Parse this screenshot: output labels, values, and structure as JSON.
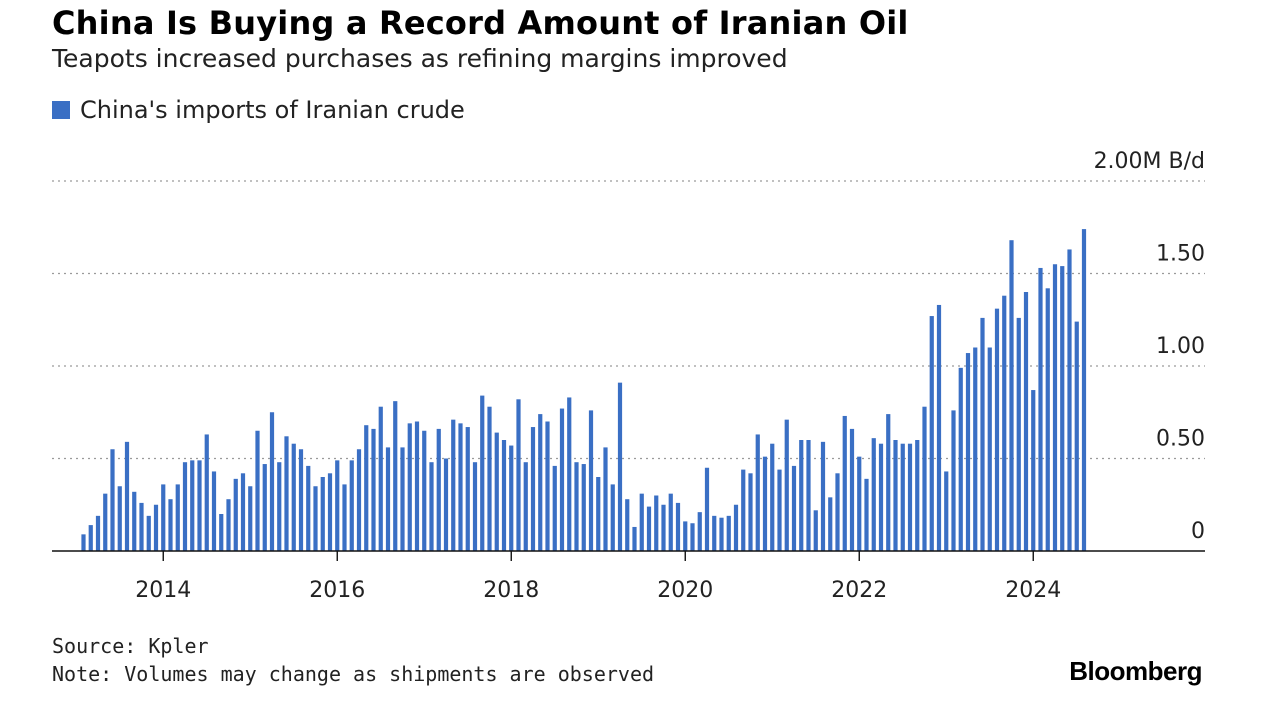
{
  "chart_data": {
    "type": "bar",
    "title": "China Is Buying a Record Amount of Iranian Oil",
    "subtitle": "Teapots increased purchases as refining margins improved",
    "unit_label": "2.00M B/d",
    "xlabel": "",
    "ylabel": "China's imports of Iranian crude (million barrels per day)",
    "ylim": [
      0,
      2.0
    ],
    "y_ticks": [
      {
        "value": 0,
        "label": "0"
      },
      {
        "value": 0.5,
        "label": "0.50"
      },
      {
        "value": 1.0,
        "label": "1.00"
      },
      {
        "value": 1.5,
        "label": "1.50"
      },
      {
        "value": 2.0,
        "label": "2.00M B/d"
      }
    ],
    "x_ticks": [
      "2014",
      "2016",
      "2018",
      "2020",
      "2022",
      "2024"
    ],
    "start": "2013-02",
    "grid": true,
    "legend_position": "top-left",
    "series": [
      {
        "name": "China's imports of Iranian crude",
        "color": "#3a6fc4",
        "values": [
          0.09,
          0.14,
          0.19,
          0.31,
          0.55,
          0.35,
          0.59,
          0.32,
          0.26,
          0.19,
          0.25,
          0.36,
          0.28,
          0.36,
          0.48,
          0.49,
          0.49,
          0.63,
          0.43,
          0.2,
          0.28,
          0.39,
          0.42,
          0.35,
          0.65,
          0.47,
          0.75,
          0.48,
          0.62,
          0.58,
          0.55,
          0.46,
          0.35,
          0.4,
          0.42,
          0.49,
          0.36,
          0.49,
          0.55,
          0.68,
          0.66,
          0.78,
          0.56,
          0.81,
          0.56,
          0.69,
          0.7,
          0.65,
          0.48,
          0.66,
          0.5,
          0.71,
          0.69,
          0.67,
          0.48,
          0.84,
          0.78,
          0.64,
          0.6,
          0.57,
          0.82,
          0.48,
          0.67,
          0.74,
          0.7,
          0.46,
          0.77,
          0.83,
          0.48,
          0.47,
          0.76,
          0.4,
          0.56,
          0.36,
          0.91,
          0.28,
          0.13,
          0.31,
          0.24,
          0.3,
          0.25,
          0.31,
          0.26,
          0.16,
          0.15,
          0.21,
          0.45,
          0.19,
          0.18,
          0.19,
          0.25,
          0.44,
          0.42,
          0.63,
          0.51,
          0.58,
          0.44,
          0.71,
          0.46,
          0.6,
          0.6,
          0.22,
          0.59,
          0.29,
          0.42,
          0.73,
          0.66,
          0.51,
          0.39,
          0.61,
          0.58,
          0.74,
          0.6,
          0.58,
          0.58,
          0.6,
          0.78,
          1.27,
          1.33,
          0.43,
          0.76,
          0.99,
          1.07,
          1.1,
          1.26,
          1.1,
          1.31,
          1.38,
          1.68,
          1.26,
          1.4,
          0.87,
          1.53,
          1.42,
          1.55,
          1.54,
          1.63,
          1.24,
          1.74
        ]
      }
    ]
  },
  "footer": {
    "source": "Source: Kpler",
    "note": "Note: Volumes may change as shipments are observed",
    "brand": "Bloomberg"
  }
}
